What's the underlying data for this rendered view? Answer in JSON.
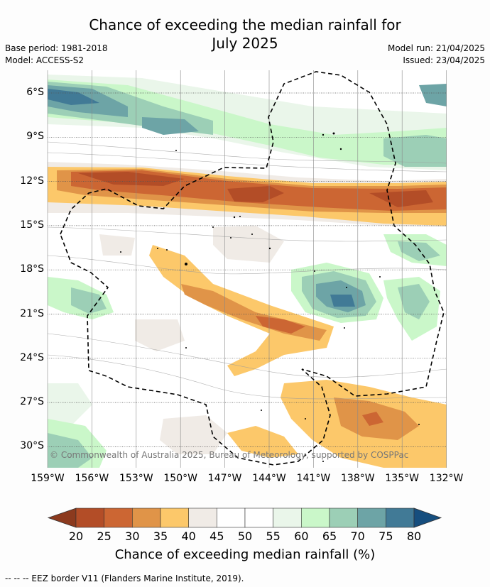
{
  "title_line1": "Chance of exceeding the median rainfall for",
  "title_line2": "July 2025",
  "base_period": "Base period: 1981-2018",
  "model": "Model: ACCESS-S2",
  "model_run": "Model run: 21/04/2025",
  "issued": "Issued: 23/04/2025",
  "copyright": "© Commonwealth of Australia 2025, Bureau of Meteorology, supported by COSPPac",
  "footer": "--  --  -- EEZ border V11 (Flanders Marine Institute, 2019).",
  "map": {
    "lat_labels": [
      "6°S",
      "9°S",
      "12°S",
      "15°S",
      "18°S",
      "21°S",
      "24°S",
      "27°S",
      "30°S"
    ],
    "lon_labels": [
      "159°W",
      "156°W",
      "153°W",
      "150°W",
      "147°W",
      "144°W",
      "141°W",
      "138°W",
      "135°W",
      "132°W"
    ]
  },
  "colorbar": {
    "title": "Chance of exceeding median rainfall (%)",
    "ticks": [
      "20",
      "25",
      "30",
      "35",
      "40",
      "45",
      "50",
      "55",
      "60",
      "65",
      "70",
      "75",
      "80"
    ],
    "colors": [
      "#8c3a1e",
      "#b34d27",
      "#cc6633",
      "#e09448",
      "#fcc86a",
      "#f0ebe6",
      "#ffffff",
      "#ffffff",
      "#eaf6ea",
      "#caf7c9",
      "#9ccfb6",
      "#6da4a6",
      "#417a96",
      "#164e7e"
    ]
  }
}
